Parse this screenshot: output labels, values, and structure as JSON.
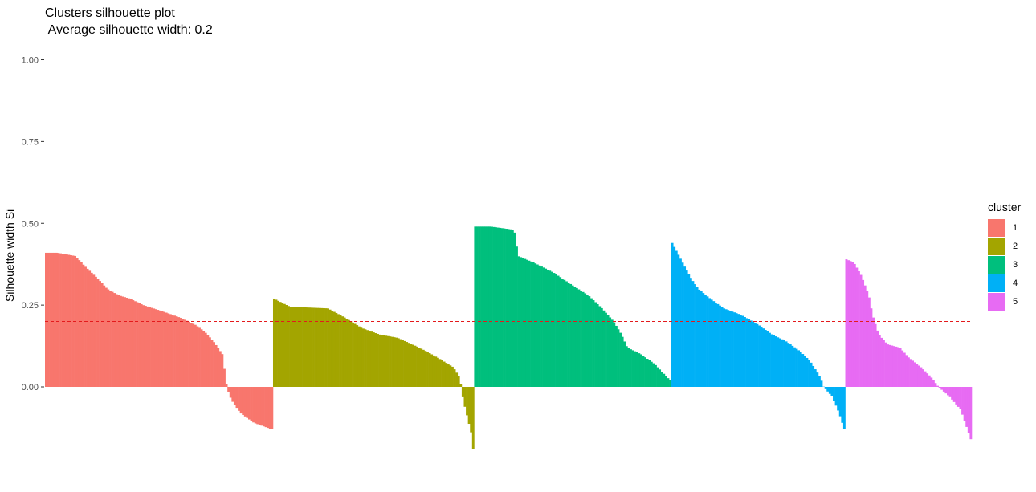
{
  "chart_data": {
    "type": "bar",
    "title": "Clusters silhouette plot",
    "subtitle": " Average silhouette width: 0.2",
    "xlabel": "",
    "ylabel": "Silhouette width Si",
    "ylim": [
      -0.2,
      1.0
    ],
    "yticks": [
      0.0,
      0.25,
      0.5,
      0.75,
      1.0
    ],
    "ytick_labels": [
      "0.00",
      "0.25",
      "0.50",
      "0.75",
      "1.00"
    ],
    "average_silhouette_width": 0.2,
    "reference_line": {
      "y": 0.2,
      "style": "dashed",
      "color": "#E41A1C"
    },
    "legend": {
      "title": "cluster",
      "position": "right"
    },
    "grid": false,
    "clusters": [
      {
        "name": "1",
        "color": "#F8766D",
        "count": 110,
        "profile": [
          [
            0,
            0.41
          ],
          [
            0.05,
            0.41
          ],
          [
            0.13,
            0.4
          ],
          [
            0.17,
            0.37
          ],
          [
            0.23,
            0.33
          ],
          [
            0.27,
            0.3
          ],
          [
            0.32,
            0.28
          ],
          [
            0.37,
            0.27
          ],
          [
            0.43,
            0.25
          ],
          [
            0.52,
            0.23
          ],
          [
            0.6,
            0.21
          ],
          [
            0.66,
            0.19
          ],
          [
            0.7,
            0.17
          ],
          [
            0.74,
            0.14
          ],
          [
            0.78,
            0.1
          ],
          [
            0.79,
            0.05
          ],
          [
            0.8,
            0.0
          ],
          [
            0.82,
            -0.04
          ],
          [
            0.86,
            -0.08
          ],
          [
            0.92,
            -0.11
          ],
          [
            0.96,
            -0.12
          ],
          [
            1,
            -0.13
          ]
        ]
      },
      {
        "name": "2",
        "color": "#A3A500",
        "count": 97,
        "profile": [
          [
            0,
            0.27
          ],
          [
            0.03,
            0.26
          ],
          [
            0.08,
            0.245
          ],
          [
            0.27,
            0.24
          ],
          [
            0.36,
            0.21
          ],
          [
            0.44,
            0.18
          ],
          [
            0.53,
            0.16
          ],
          [
            0.62,
            0.15
          ],
          [
            0.73,
            0.12
          ],
          [
            0.82,
            0.09
          ],
          [
            0.9,
            0.06
          ],
          [
            0.93,
            0.03
          ],
          [
            0.94,
            0.0
          ],
          [
            0.95,
            -0.04
          ],
          [
            0.97,
            -0.09
          ],
          [
            0.99,
            -0.14
          ],
          [
            1,
            -0.19
          ]
        ]
      },
      {
        "name": "3",
        "color": "#00BF7D",
        "count": 95,
        "profile": [
          [
            0,
            0.49
          ],
          [
            0.08,
            0.49
          ],
          [
            0.2,
            0.48
          ],
          [
            0.22,
            0.4
          ],
          [
            0.3,
            0.38
          ],
          [
            0.4,
            0.35
          ],
          [
            0.5,
            0.31
          ],
          [
            0.58,
            0.28
          ],
          [
            0.65,
            0.24
          ],
          [
            0.71,
            0.2
          ],
          [
            0.75,
            0.16
          ],
          [
            0.78,
            0.12
          ],
          [
            0.85,
            0.1
          ],
          [
            0.92,
            0.07
          ],
          [
            1,
            0.02
          ]
        ]
      },
      {
        "name": "4",
        "color": "#00B0F6",
        "count": 84,
        "profile": [
          [
            0,
            0.44
          ],
          [
            0.02,
            0.42
          ],
          [
            0.06,
            0.38
          ],
          [
            0.1,
            0.34
          ],
          [
            0.15,
            0.3
          ],
          [
            0.22,
            0.27
          ],
          [
            0.3,
            0.24
          ],
          [
            0.4,
            0.22
          ],
          [
            0.5,
            0.19
          ],
          [
            0.58,
            0.16
          ],
          [
            0.66,
            0.14
          ],
          [
            0.74,
            0.11
          ],
          [
            0.8,
            0.08
          ],
          [
            0.86,
            0.03
          ],
          [
            0.88,
            0.0
          ],
          [
            0.93,
            -0.03
          ],
          [
            0.97,
            -0.08
          ],
          [
            1,
            -0.13
          ]
        ]
      },
      {
        "name": "5",
        "color": "#E76BF3",
        "count": 61,
        "profile": [
          [
            0,
            0.39
          ],
          [
            0.06,
            0.38
          ],
          [
            0.12,
            0.34
          ],
          [
            0.18,
            0.28
          ],
          [
            0.21,
            0.22
          ],
          [
            0.26,
            0.16
          ],
          [
            0.33,
            0.13
          ],
          [
            0.43,
            0.12
          ],
          [
            0.5,
            0.09
          ],
          [
            0.6,
            0.06
          ],
          [
            0.68,
            0.03
          ],
          [
            0.74,
            0.0
          ],
          [
            0.83,
            -0.03
          ],
          [
            0.92,
            -0.07
          ],
          [
            1,
            -0.16
          ]
        ]
      }
    ]
  }
}
